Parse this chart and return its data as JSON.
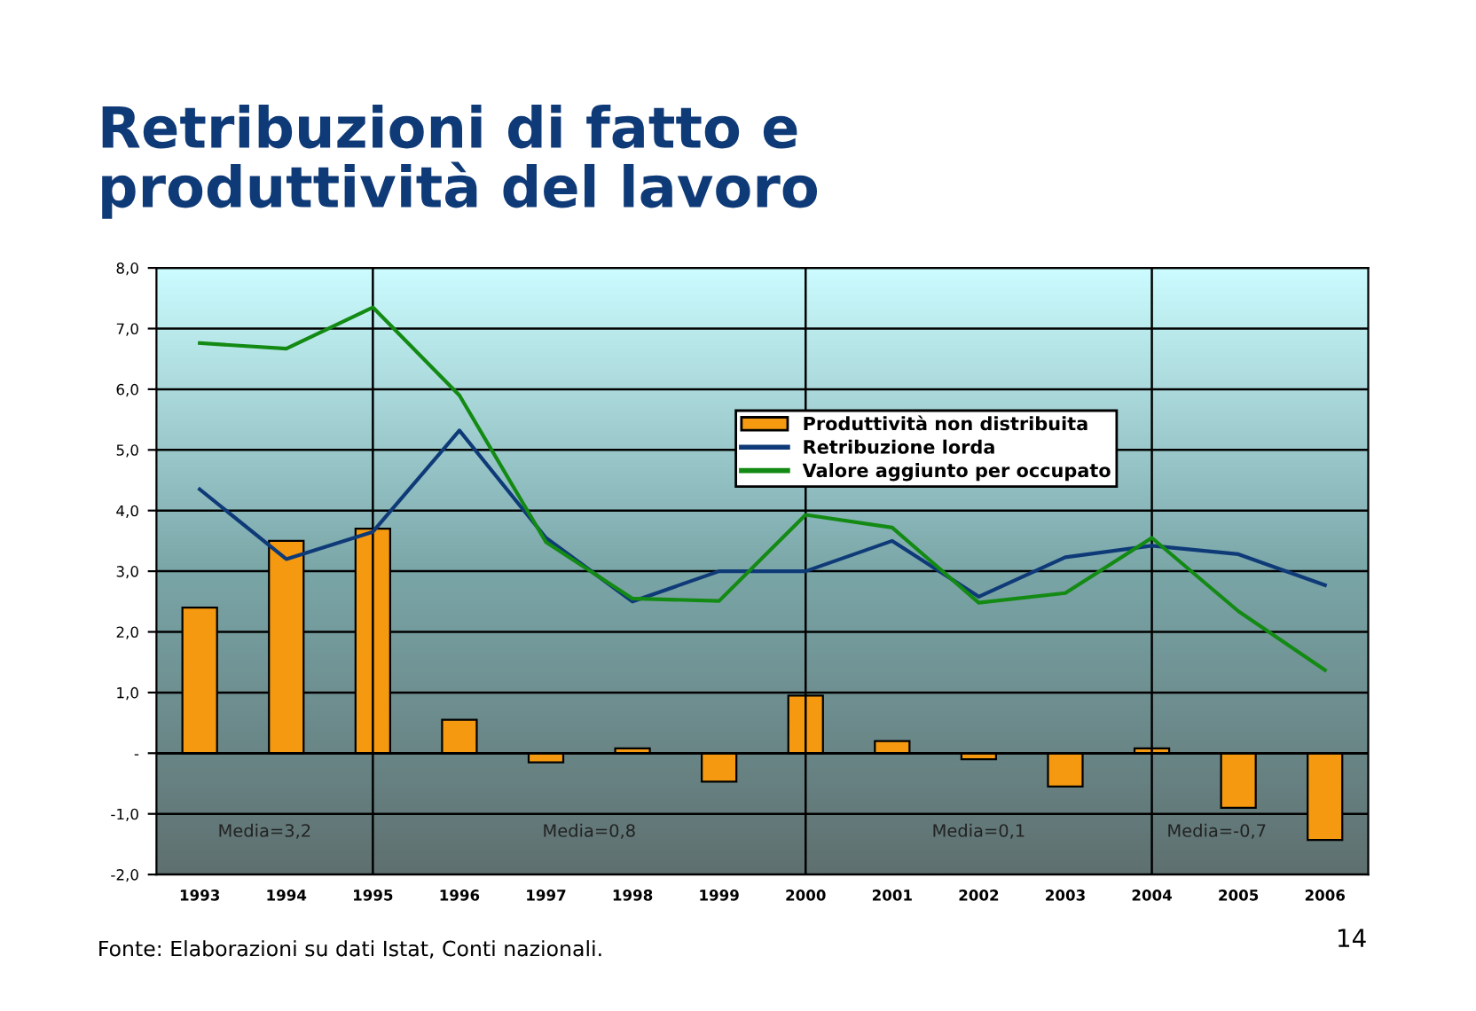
{
  "chart_data": {
    "type": "bar",
    "title": "Retribuzioni di fatto e\nproduttività del lavoro",
    "categories": [
      "1993",
      "1994",
      "1995",
      "1996",
      "1997",
      "1998",
      "1999",
      "2000",
      "2001",
      "2002",
      "2003",
      "2004",
      "2005",
      "2006"
    ],
    "series": [
      {
        "name": "Produttività non distribuita",
        "color": "#f59a10",
        "values": [
          2.4,
          3.5,
          3.7,
          0.55,
          -0.15,
          0.08,
          -0.47,
          0.95,
          0.2,
          -0.1,
          -0.55,
          0.08,
          -0.9,
          -1.43
        ]
      },
      {
        "name": "Retribuzione lorda",
        "type": "line",
        "color": "#0f3a78",
        "values": [
          4.35,
          3.2,
          3.65,
          5.32,
          3.55,
          2.5,
          3.0,
          3.0,
          3.5,
          2.58,
          3.23,
          3.42,
          3.28,
          2.77
        ]
      },
      {
        "name": "Valore aggiunto per occupato",
        "type": "line",
        "color": "#138a13",
        "values": [
          6.76,
          6.67,
          7.35,
          5.9,
          3.48,
          2.55,
          2.51,
          3.93,
          3.72,
          2.48,
          2.64,
          3.55,
          2.34,
          1.37
        ]
      }
    ],
    "ylim": [
      -2,
      8
    ],
    "yticks": [
      {
        "value": -2,
        "label": "-2,0"
      },
      {
        "value": -1,
        "label": "-1,0"
      },
      {
        "value": 0,
        "label": "-"
      },
      {
        "value": 1,
        "label": "1,0"
      },
      {
        "value": 2,
        "label": "2,0"
      },
      {
        "value": 3,
        "label": "3,0"
      },
      {
        "value": 4,
        "label": "4,0"
      },
      {
        "value": 5,
        "label": "5,0"
      },
      {
        "value": 6,
        "label": "6,0"
      },
      {
        "value": 7,
        "label": "7,0"
      },
      {
        "value": 8,
        "label": "8,0"
      }
    ],
    "grid": "y",
    "legend": "top right",
    "ref_lines": [
      {
        "axis": "x",
        "value": "1995",
        "color": "#000000"
      },
      {
        "axis": "x",
        "value": "2000",
        "color": "#000000"
      },
      {
        "axis": "x",
        "value": "2004",
        "color": "#000000"
      }
    ],
    "annotations": [
      "Media=3,2",
      "Media=0,8",
      "Media=0,1",
      "Media=-0,7",
      "Fonte: Elaborazioni su dati Istat, Conti nazionali.",
      "14"
    ]
  }
}
